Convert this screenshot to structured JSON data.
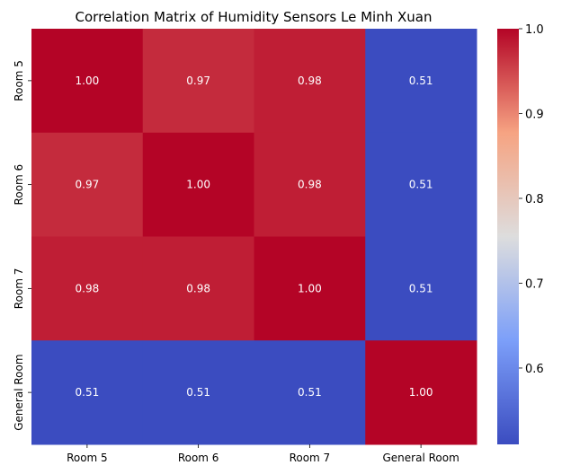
{
  "chart_data": {
    "type": "heatmap",
    "title": "Correlation Matrix of Humidity Sensors Le Minh Xuan",
    "x_categories": [
      "Room 5",
      "Room 6",
      "Room 7",
      "General Room"
    ],
    "y_categories": [
      "Room 5",
      "Room 6",
      "Room 7",
      "General Room"
    ],
    "values": [
      [
        1.0,
        0.97,
        0.98,
        0.51
      ],
      [
        0.97,
        1.0,
        0.98,
        0.51
      ],
      [
        0.98,
        0.98,
        1.0,
        0.51
      ],
      [
        0.51,
        0.51,
        0.51,
        1.0
      ]
    ],
    "cell_labels": [
      [
        "1.00",
        "0.97",
        "0.98",
        "0.51"
      ],
      [
        "0.97",
        "1.00",
        "0.98",
        "0.51"
      ],
      [
        "0.98",
        "0.98",
        "1.00",
        "0.51"
      ],
      [
        "0.51",
        "0.51",
        "0.51",
        "1.00"
      ]
    ],
    "colormap": "coolwarm",
    "colorbar": {
      "range": [
        0.51,
        1.0
      ],
      "ticks": [
        0.6,
        0.7,
        0.8,
        0.9,
        1.0
      ],
      "tick_labels": [
        "0.6",
        "0.7",
        "0.8",
        "0.9",
        "1.0"
      ]
    },
    "xlabel": "",
    "ylabel": "",
    "grid": false
  }
}
